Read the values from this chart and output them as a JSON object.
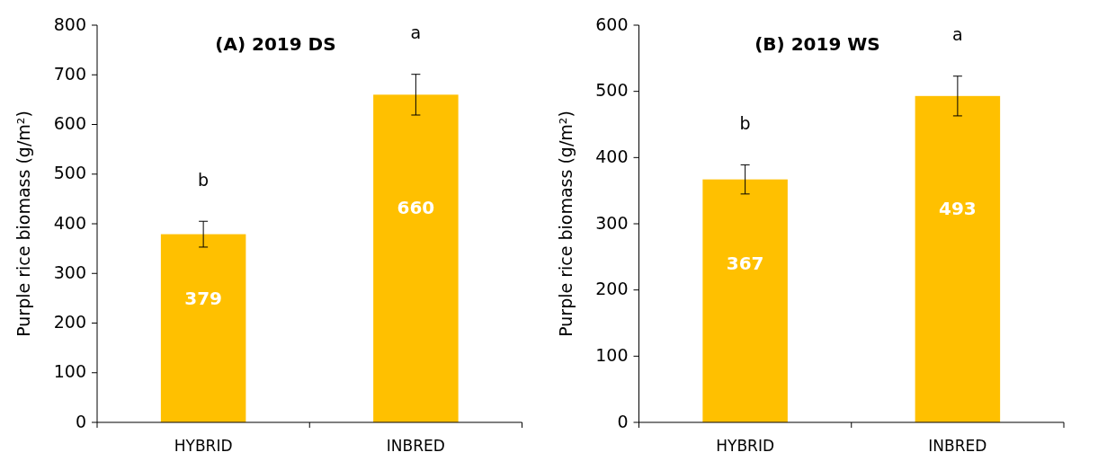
{
  "chart_data": [
    {
      "type": "bar",
      "title": "(A) 2019 DS",
      "ylabel": "Purple rice biomass (g/m²)",
      "categories": [
        "HYBRID",
        "INBRED"
      ],
      "values": [
        379,
        660
      ],
      "errors": [
        26,
        41
      ],
      "color": "#ffc000",
      "ylim": [
        0,
        800
      ],
      "yticks": [
        0,
        100,
        200,
        300,
        400,
        500,
        600,
        700,
        800
      ],
      "data_labels": true,
      "grid": false,
      "annotations": [
        "b",
        "a"
      ]
    },
    {
      "type": "bar",
      "title": "(B) 2019 WS",
      "ylabel": "Purple rice biomass (g/m²)",
      "categories": [
        "HYBRID",
        "INBRED"
      ],
      "values": [
        367,
        493
      ],
      "errors": [
        22,
        30
      ],
      "color": "#ffc000",
      "ylim": [
        0,
        600
      ],
      "yticks": [
        0,
        100,
        200,
        300,
        400,
        500,
        600
      ],
      "data_labels": true,
      "grid": false,
      "annotations": [
        "b",
        "a"
      ]
    }
  ]
}
